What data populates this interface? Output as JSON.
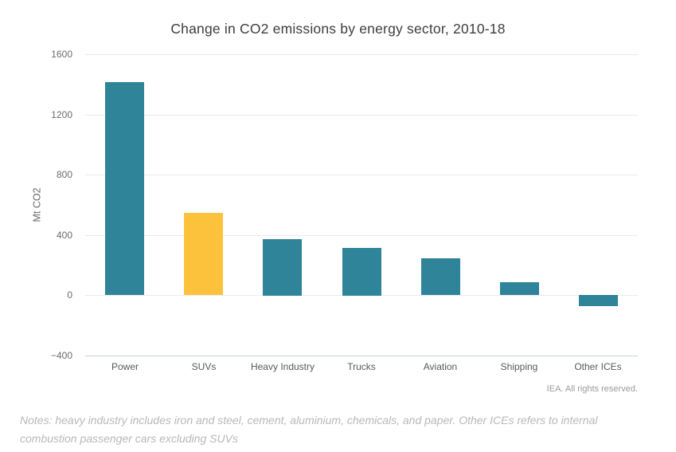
{
  "title": "Change in CO2 emissions by energy sector, 2010-18",
  "attribution": "IEA. All rights reserved.",
  "notes": "Notes: heavy industry includes iron and steel, cement, aluminium, chemicals, and paper. Other ICEs refers to internal combustion passenger cars excluding SUVs",
  "chart_data": {
    "type": "bar",
    "title": "Change in CO2 emissions by energy sector, 2010-18",
    "categories": [
      "Power",
      "SUVs",
      "Heavy Industry",
      "Trucks",
      "Aviation",
      "Shipping",
      "Other ICEs"
    ],
    "values": [
      1415,
      545,
      375,
      315,
      245,
      85,
      -75
    ],
    "bar_colors": [
      "#2F8499",
      "#FDC23C",
      "#2F8499",
      "#2F8499",
      "#2F8499",
      "#2F8499",
      "#2F8499"
    ],
    "xlabel": "",
    "ylabel": "Mt CO2",
    "ylim": [
      -400,
      1600
    ],
    "yticks": [
      1600,
      1200,
      800,
      400,
      0,
      -400
    ],
    "grid": true,
    "legend": false
  },
  "colors": {
    "bar_teal": "#2F8499",
    "bar_yellow": "#FDC23C",
    "gridline": "#EBEBEB",
    "axis_baseline": "#C6D2DE",
    "title_text": "#3D3D3D",
    "tick_text": "#6B6B6B",
    "category_text": "#595959",
    "notes_text": "#B8B8B8",
    "attribution_text": "#9B9B9B"
  }
}
